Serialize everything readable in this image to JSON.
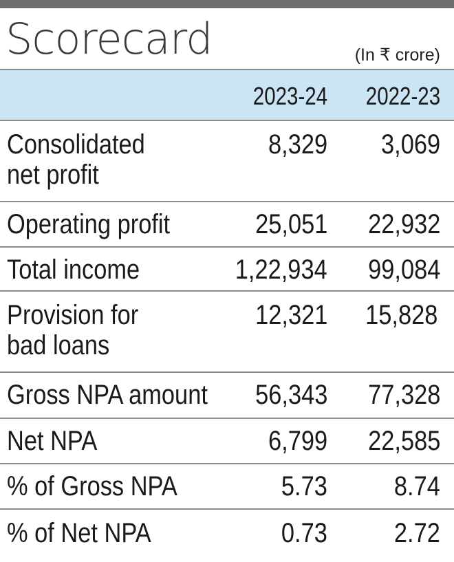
{
  "title": "Scorecard",
  "unit_note": "(In ₹ crore)",
  "columns": [
    "2023-24",
    "2022-23"
  ],
  "rows": [
    {
      "label": "Consolidated\nnet profit",
      "v2023": "8,329",
      "v2022": "3,069"
    },
    {
      "label": "Operating profit",
      "v2023": "25,051",
      "v2022": "22,932"
    },
    {
      "label": "Total income",
      "v2023": "1,22,934",
      "v2022": "99,084"
    },
    {
      "label": "Provision for\nbad loans",
      "v2023": "12,321",
      "v2022": "15,828"
    },
    {
      "label": "Gross NPA amount",
      "v2023": "56,343",
      "v2022": "77,328"
    },
    {
      "label": "Net NPA",
      "v2023": "6,799",
      "v2022": "22,585"
    },
    {
      "label": "% of Gross NPA",
      "v2023": "5.73",
      "v2022": "8.74"
    },
    {
      "label": "% of Net NPA",
      "v2023": "0.73",
      "v2022": "2.72"
    }
  ]
}
